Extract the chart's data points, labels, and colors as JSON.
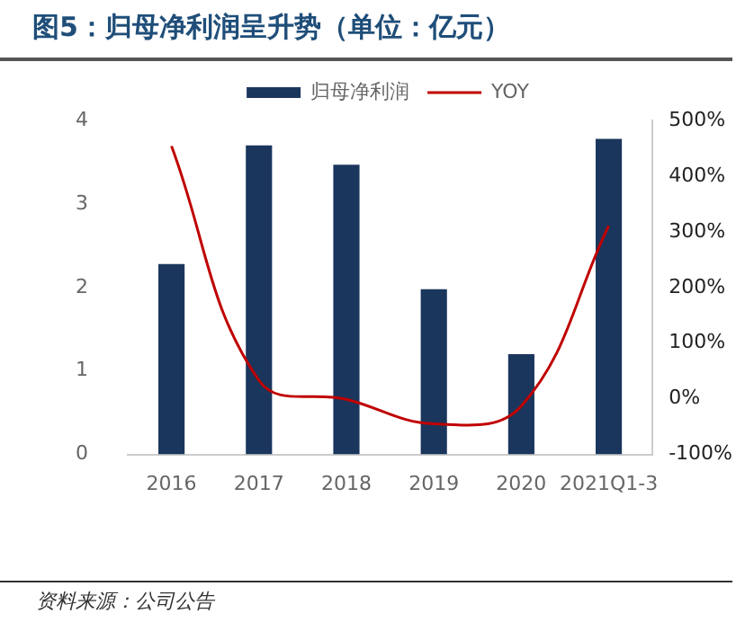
{
  "chart_data": {
    "type": "bar",
    "title": "图5：归母净利润呈升势（单位：亿元）",
    "categories": [
      "2016",
      "2017",
      "2018",
      "2019",
      "2020",
      "2021Q1-3"
    ],
    "series": [
      {
        "name": "归母净利润",
        "color": "#1b365d",
        "values": [
          2.28,
          3.7,
          3.47,
          1.98,
          1.2,
          3.78
        ]
      },
      {
        "name": "YOY",
        "type": "line",
        "axis": "y2",
        "color": "#c00000",
        "values": [
          454,
          33,
          -1,
          -45,
          -13,
          311
        ]
      }
    ],
    "ylim": [
      0,
      4
    ],
    "yticks": [
      0,
      1,
      2,
      3,
      4
    ],
    "y2lim": [
      -100,
      500
    ],
    "y2ticks": [
      {
        "value": -100,
        "label": "-100%"
      },
      {
        "value": 0,
        "label": "0%"
      },
      {
        "value": 100,
        "label": "100%"
      },
      {
        "value": 200,
        "label": "200%"
      },
      {
        "value": 300,
        "label": "300%"
      },
      {
        "value": 400,
        "label": "400%"
      },
      {
        "value": 500,
        "label": "500%"
      }
    ],
    "grid": false,
    "legend": "top",
    "marker": "none",
    "annotations": [
      "资料来源：公司公告"
    ]
  }
}
